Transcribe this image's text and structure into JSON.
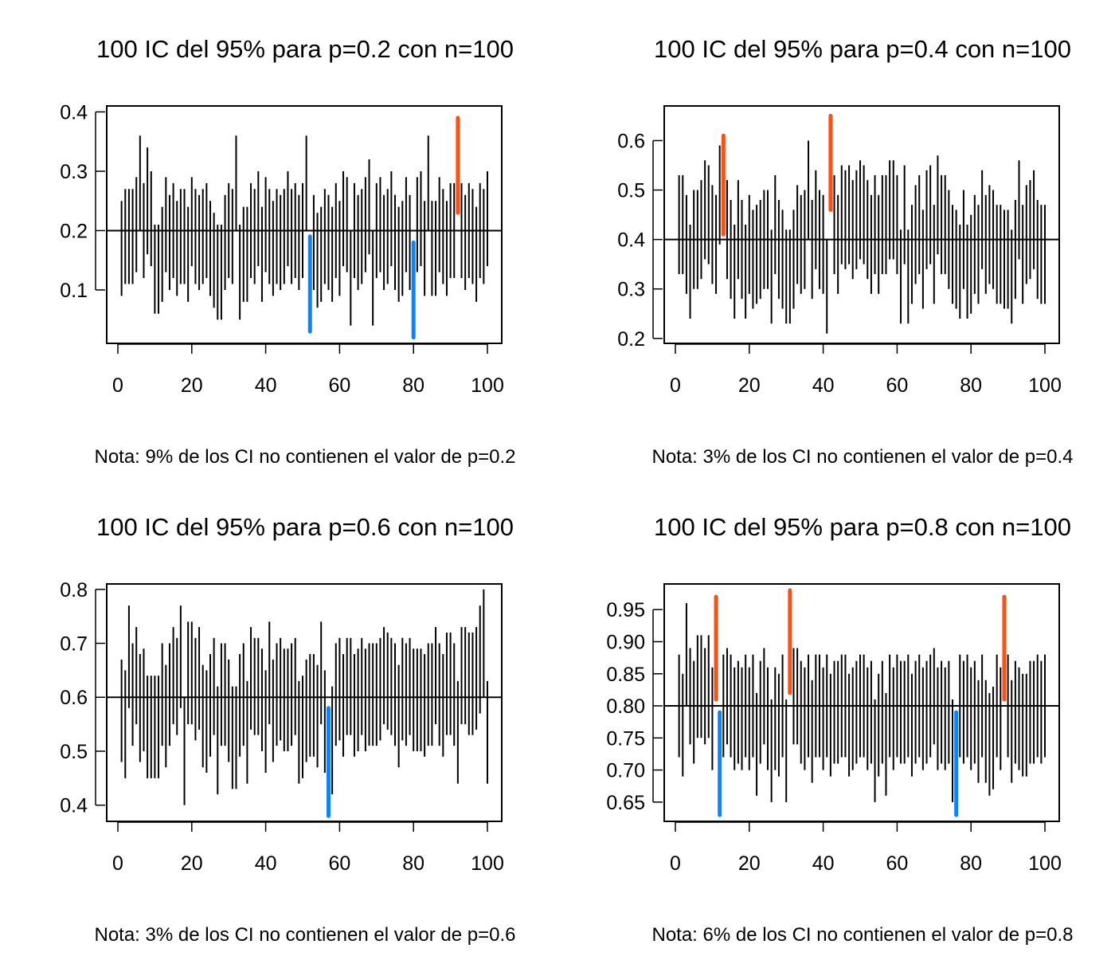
{
  "colors": {
    "cover": "#000000",
    "above": "#FF4F12",
    "below": "#0A84FF",
    "frame": "#000000"
  },
  "chart_data": [
    {
      "type": "interval",
      "title": "100 IC del 95% para p=0.2 con n=100",
      "note": "Nota: 9% de los CI no contienen el valor de p=0.2",
      "p": 0.2,
      "xlim": [
        1,
        100
      ],
      "ylim": [
        0.01,
        0.41
      ],
      "xticks": [
        0,
        20,
        40,
        60,
        80,
        100
      ],
      "yticks": [
        0.1,
        0.2,
        0.3,
        0.4
      ],
      "ytick_labels": [
        "0.1",
        "0.2",
        "0.3",
        "0.4"
      ],
      "lower": [
        0.09,
        0.11,
        0.11,
        0.11,
        0.13,
        0.2,
        0.12,
        0.16,
        0.14,
        0.06,
        0.06,
        0.08,
        0.13,
        0.1,
        0.12,
        0.09,
        0.11,
        0.11,
        0.08,
        0.14,
        0.11,
        0.1,
        0.11,
        0.12,
        0.09,
        0.07,
        0.05,
        0.05,
        0.1,
        0.12,
        0.11,
        0.2,
        0.05,
        0.08,
        0.08,
        0.12,
        0.11,
        0.14,
        0.08,
        0.13,
        0.11,
        0.09,
        0.11,
        0.1,
        0.11,
        0.14,
        0.11,
        0.12,
        0.1,
        0.12,
        0.2,
        0.03,
        0.1,
        0.07,
        0.08,
        0.11,
        0.1,
        0.08,
        0.12,
        0.09,
        0.14,
        0.13,
        0.04,
        0.12,
        0.1,
        0.11,
        0.13,
        0.16,
        0.04,
        0.12,
        0.13,
        0.1,
        0.11,
        0.14,
        0.1,
        0.08,
        0.09,
        0.13,
        0.1,
        0.02,
        0.13,
        0.14,
        0.09,
        0.2,
        0.09,
        0.09,
        0.13,
        0.11,
        0.09,
        0.12,
        0.12,
        0.23,
        0.12,
        0.1,
        0.12,
        0.11,
        0.08,
        0.12,
        0.11,
        0.14
      ],
      "upper": [
        0.25,
        0.27,
        0.27,
        0.27,
        0.29,
        0.36,
        0.28,
        0.34,
        0.3,
        0.21,
        0.21,
        0.24,
        0.29,
        0.26,
        0.28,
        0.25,
        0.27,
        0.27,
        0.24,
        0.29,
        0.27,
        0.26,
        0.27,
        0.28,
        0.25,
        0.23,
        0.21,
        0.21,
        0.26,
        0.28,
        0.27,
        0.36,
        0.21,
        0.24,
        0.24,
        0.28,
        0.27,
        0.3,
        0.24,
        0.29,
        0.27,
        0.25,
        0.27,
        0.26,
        0.27,
        0.3,
        0.27,
        0.28,
        0.26,
        0.28,
        0.36,
        0.19,
        0.26,
        0.23,
        0.24,
        0.27,
        0.26,
        0.24,
        0.28,
        0.25,
        0.3,
        0.29,
        0.2,
        0.28,
        0.26,
        0.27,
        0.29,
        0.32,
        0.2,
        0.28,
        0.29,
        0.26,
        0.27,
        0.3,
        0.26,
        0.24,
        0.25,
        0.29,
        0.26,
        0.18,
        0.29,
        0.3,
        0.25,
        0.36,
        0.25,
        0.25,
        0.29,
        0.27,
        0.25,
        0.28,
        0.28,
        0.39,
        0.28,
        0.26,
        0.28,
        0.27,
        0.24,
        0.28,
        0.27,
        0.3
      ]
    },
    {
      "type": "interval",
      "title": "100 IC del 95% para p=0.4 con n=100",
      "note": "Nota: 3% de los CI no contienen el valor de p=0.4",
      "p": 0.4,
      "xlim": [
        1,
        100
      ],
      "ylim": [
        0.19,
        0.67
      ],
      "xticks": [
        0,
        20,
        40,
        60,
        80,
        100
      ],
      "yticks": [
        0.2,
        0.3,
        0.4,
        0.5,
        0.6
      ],
      "ytick_labels": [
        "0.2",
        "0.3",
        "0.4",
        "0.5",
        "0.6"
      ],
      "lower": [
        0.33,
        0.33,
        0.29,
        0.24,
        0.3,
        0.3,
        0.32,
        0.36,
        0.35,
        0.31,
        0.29,
        0.39,
        0.41,
        0.32,
        0.28,
        0.24,
        0.32,
        0.28,
        0.24,
        0.29,
        0.26,
        0.27,
        0.28,
        0.3,
        0.3,
        0.23,
        0.33,
        0.28,
        0.26,
        0.23,
        0.23,
        0.26,
        0.31,
        0.29,
        0.3,
        0.4,
        0.28,
        0.34,
        0.3,
        0.29,
        0.21,
        0.46,
        0.33,
        0.29,
        0.35,
        0.34,
        0.35,
        0.32,
        0.34,
        0.36,
        0.35,
        0.32,
        0.29,
        0.33,
        0.29,
        0.33,
        0.33,
        0.36,
        0.36,
        0.33,
        0.23,
        0.35,
        0.23,
        0.27,
        0.31,
        0.33,
        0.26,
        0.34,
        0.35,
        0.27,
        0.37,
        0.33,
        0.33,
        0.3,
        0.27,
        0.26,
        0.24,
        0.3,
        0.24,
        0.25,
        0.29,
        0.27,
        0.34,
        0.29,
        0.31,
        0.3,
        0.27,
        0.27,
        0.26,
        0.26,
        0.23,
        0.28,
        0.36,
        0.27,
        0.31,
        0.32,
        0.34,
        0.28,
        0.27,
        0.27
      ],
      "upper": [
        0.53,
        0.53,
        0.49,
        0.43,
        0.5,
        0.5,
        0.52,
        0.56,
        0.55,
        0.51,
        0.49,
        0.59,
        0.61,
        0.52,
        0.48,
        0.43,
        0.52,
        0.48,
        0.43,
        0.49,
        0.46,
        0.47,
        0.48,
        0.5,
        0.5,
        0.42,
        0.53,
        0.48,
        0.46,
        0.42,
        0.42,
        0.46,
        0.51,
        0.49,
        0.5,
        0.6,
        0.48,
        0.54,
        0.5,
        0.49,
        0.4,
        0.65,
        0.53,
        0.49,
        0.55,
        0.54,
        0.55,
        0.52,
        0.54,
        0.56,
        0.55,
        0.52,
        0.49,
        0.53,
        0.49,
        0.53,
        0.53,
        0.56,
        0.56,
        0.53,
        0.42,
        0.55,
        0.42,
        0.47,
        0.51,
        0.53,
        0.46,
        0.54,
        0.55,
        0.47,
        0.57,
        0.53,
        0.53,
        0.5,
        0.47,
        0.46,
        0.43,
        0.5,
        0.43,
        0.45,
        0.49,
        0.47,
        0.54,
        0.49,
        0.51,
        0.5,
        0.47,
        0.47,
        0.46,
        0.46,
        0.42,
        0.48,
        0.56,
        0.47,
        0.51,
        0.52,
        0.54,
        0.48,
        0.47,
        0.47
      ]
    },
    {
      "type": "interval",
      "title": "100 IC del 95% para p=0.6 con n=100",
      "note": "Nota: 3% de los CI no contienen el valor de p=0.6",
      "p": 0.6,
      "xlim": [
        1,
        100
      ],
      "ylim": [
        0.37,
        0.81
      ],
      "xticks": [
        0,
        20,
        40,
        60,
        80,
        100
      ],
      "yticks": [
        0.4,
        0.5,
        0.6,
        0.7,
        0.8
      ],
      "ytick_labels": [
        "0.4",
        "0.5",
        "0.6",
        "0.7",
        "0.8"
      ],
      "lower": [
        0.48,
        0.45,
        0.58,
        0.51,
        0.55,
        0.48,
        0.5,
        0.45,
        0.45,
        0.45,
        0.45,
        0.51,
        0.47,
        0.51,
        0.55,
        0.53,
        0.58,
        0.4,
        0.55,
        0.55,
        0.52,
        0.54,
        0.47,
        0.46,
        0.49,
        0.53,
        0.42,
        0.51,
        0.51,
        0.48,
        0.43,
        0.43,
        0.49,
        0.51,
        0.44,
        0.54,
        0.53,
        0.53,
        0.5,
        0.46,
        0.55,
        0.48,
        0.51,
        0.52,
        0.5,
        0.5,
        0.51,
        0.53,
        0.44,
        0.45,
        0.48,
        0.49,
        0.49,
        0.47,
        0.55,
        0.46,
        0.38,
        0.42,
        0.51,
        0.52,
        0.49,
        0.53,
        0.53,
        0.49,
        0.5,
        0.53,
        0.5,
        0.51,
        0.51,
        0.51,
        0.52,
        0.55,
        0.54,
        0.53,
        0.51,
        0.47,
        0.52,
        0.51,
        0.53,
        0.5,
        0.5,
        0.5,
        0.49,
        0.51,
        0.51,
        0.55,
        0.51,
        0.49,
        0.53,
        0.53,
        0.51,
        0.44,
        0.55,
        0.55,
        0.53,
        0.53,
        0.54,
        0.57,
        0.6,
        0.44
      ],
      "upper": [
        0.67,
        0.65,
        0.77,
        0.7,
        0.73,
        0.68,
        0.69,
        0.64,
        0.64,
        0.64,
        0.64,
        0.7,
        0.66,
        0.7,
        0.73,
        0.71,
        0.77,
        0.6,
        0.74,
        0.74,
        0.71,
        0.73,
        0.66,
        0.65,
        0.68,
        0.71,
        0.62,
        0.7,
        0.7,
        0.67,
        0.62,
        0.62,
        0.68,
        0.7,
        0.63,
        0.73,
        0.71,
        0.71,
        0.69,
        0.65,
        0.74,
        0.67,
        0.7,
        0.71,
        0.69,
        0.69,
        0.7,
        0.71,
        0.63,
        0.64,
        0.67,
        0.68,
        0.68,
        0.66,
        0.74,
        0.65,
        0.58,
        0.62,
        0.7,
        0.71,
        0.68,
        0.71,
        0.71,
        0.68,
        0.69,
        0.71,
        0.69,
        0.7,
        0.7,
        0.7,
        0.71,
        0.73,
        0.72,
        0.71,
        0.7,
        0.66,
        0.71,
        0.7,
        0.71,
        0.69,
        0.69,
        0.69,
        0.68,
        0.7,
        0.7,
        0.73,
        0.7,
        0.68,
        0.72,
        0.72,
        0.7,
        0.63,
        0.73,
        0.73,
        0.72,
        0.72,
        0.73,
        0.77,
        0.8,
        0.63
      ]
    },
    {
      "type": "interval",
      "title": "100 IC del 95% para p=0.8 con n=100",
      "note": "Nota: 6% de los CI no contienen el valor de p=0.8",
      "p": 0.8,
      "xlim": [
        1,
        100
      ],
      "ylim": [
        0.62,
        0.99
      ],
      "xticks": [
        0,
        20,
        40,
        60,
        80,
        100
      ],
      "yticks": [
        0.65,
        0.7,
        0.75,
        0.8,
        0.85,
        0.9,
        0.95
      ],
      "ytick_labels": [
        "0.65",
        "0.70",
        "0.75",
        "0.80",
        "0.85",
        "0.90",
        "0.95"
      ],
      "lower": [
        0.72,
        0.69,
        0.8,
        0.74,
        0.71,
        0.75,
        0.75,
        0.74,
        0.75,
        0.7,
        0.81,
        0.63,
        0.72,
        0.74,
        0.72,
        0.7,
        0.71,
        0.7,
        0.72,
        0.7,
        0.72,
        0.66,
        0.71,
        0.74,
        0.7,
        0.65,
        0.7,
        0.69,
        0.72,
        0.65,
        0.82,
        0.74,
        0.74,
        0.71,
        0.7,
        0.72,
        0.68,
        0.72,
        0.72,
        0.7,
        0.72,
        0.69,
        0.71,
        0.71,
        0.72,
        0.72,
        0.69,
        0.7,
        0.71,
        0.72,
        0.72,
        0.7,
        0.71,
        0.65,
        0.69,
        0.71,
        0.66,
        0.72,
        0.7,
        0.72,
        0.71,
        0.71,
        0.72,
        0.69,
        0.71,
        0.72,
        0.7,
        0.71,
        0.72,
        0.74,
        0.7,
        0.71,
        0.7,
        0.71,
        0.65,
        0.63,
        0.72,
        0.71,
        0.72,
        0.7,
        0.71,
        0.68,
        0.72,
        0.68,
        0.66,
        0.67,
        0.72,
        0.7,
        0.81,
        0.72,
        0.68,
        0.71,
        0.7,
        0.69,
        0.69,
        0.71,
        0.71,
        0.72,
        0.71,
        0.72
      ],
      "upper": [
        0.88,
        0.85,
        0.96,
        0.89,
        0.87,
        0.91,
        0.91,
        0.89,
        0.91,
        0.86,
        0.97,
        0.79,
        0.88,
        0.89,
        0.88,
        0.86,
        0.87,
        0.86,
        0.88,
        0.86,
        0.88,
        0.82,
        0.87,
        0.89,
        0.86,
        0.81,
        0.86,
        0.85,
        0.88,
        0.81,
        0.98,
        0.89,
        0.89,
        0.87,
        0.86,
        0.88,
        0.84,
        0.88,
        0.88,
        0.86,
        0.88,
        0.85,
        0.87,
        0.87,
        0.88,
        0.88,
        0.85,
        0.86,
        0.87,
        0.88,
        0.88,
        0.86,
        0.87,
        0.81,
        0.85,
        0.87,
        0.82,
        0.88,
        0.86,
        0.88,
        0.87,
        0.87,
        0.88,
        0.85,
        0.87,
        0.88,
        0.86,
        0.87,
        0.88,
        0.89,
        0.86,
        0.87,
        0.86,
        0.87,
        0.81,
        0.79,
        0.88,
        0.87,
        0.88,
        0.86,
        0.87,
        0.84,
        0.88,
        0.84,
        0.82,
        0.83,
        0.88,
        0.86,
        0.97,
        0.88,
        0.84,
        0.87,
        0.86,
        0.85,
        0.85,
        0.87,
        0.87,
        0.88,
        0.87,
        0.88
      ]
    }
  ]
}
